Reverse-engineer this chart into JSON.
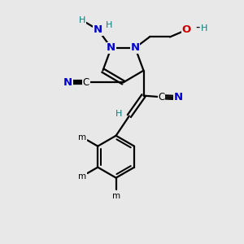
{
  "bg_color": "#e8e8e8",
  "bond_color": "#000000",
  "n_color": "#0000cd",
  "o_color": "#cc0000",
  "h_color": "#008080",
  "figsize": [
    3.0,
    3.0
  ],
  "dpi": 100,
  "xlim": [
    0,
    10
  ],
  "ylim": [
    0,
    10
  ]
}
